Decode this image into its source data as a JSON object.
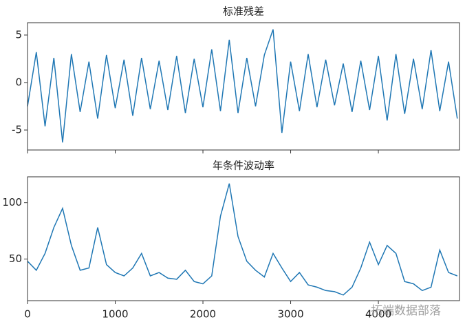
{
  "chart_data": [
    {
      "type": "line",
      "title": "标准残差",
      "color": "#1f77b4",
      "xtick_labels": false,
      "x": [
        0,
        100,
        200,
        300,
        400,
        500,
        600,
        700,
        800,
        900,
        1000,
        1100,
        1200,
        1300,
        1400,
        1500,
        1600,
        1700,
        1800,
        1900,
        2000,
        2100,
        2200,
        2300,
        2400,
        2500,
        2600,
        2700,
        2800,
        2900,
        3000,
        3100,
        3200,
        3300,
        3400,
        3500,
        3600,
        3700,
        3800,
        3900,
        4000,
        4100,
        4200,
        4300,
        4400,
        4500,
        4600,
        4700,
        4800,
        4900
      ],
      "values": [
        -2.5,
        3.2,
        -4.6,
        2.6,
        -6.3,
        3.0,
        -3.1,
        2.2,
        -3.8,
        2.9,
        -2.7,
        2.4,
        -3.5,
        2.6,
        -2.8,
        2.3,
        -2.9,
        2.8,
        -3.2,
        2.5,
        -2.6,
        3.5,
        -3.0,
        4.5,
        -3.2,
        2.6,
        -2.5,
        2.9,
        5.6,
        -5.3,
        2.2,
        -3.0,
        3.0,
        -2.6,
        2.4,
        -2.4,
        2.0,
        -3.1,
        2.3,
        -2.9,
        2.8,
        -4.0,
        3.0,
        -3.3,
        2.5,
        -2.8,
        3.4,
        -3.0,
        2.2,
        -3.8
      ],
      "xlim": [
        0,
        4925
      ],
      "xticks": [
        0,
        1000,
        2000,
        3000,
        4000
      ],
      "ylim": [
        -7.1,
        6.3
      ],
      "yticks": [
        -5,
        0,
        5
      ]
    },
    {
      "type": "line",
      "title": "年条件波动率",
      "color": "#1f77b4",
      "xtick_labels": true,
      "x": [
        0,
        100,
        200,
        300,
        400,
        500,
        600,
        700,
        800,
        900,
        1000,
        1100,
        1200,
        1300,
        1400,
        1500,
        1600,
        1700,
        1800,
        1900,
        2000,
        2100,
        2200,
        2300,
        2400,
        2500,
        2600,
        2700,
        2800,
        2900,
        3000,
        3100,
        3200,
        3300,
        3400,
        3500,
        3600,
        3700,
        3800,
        3900,
        4000,
        4100,
        4200,
        4300,
        4400,
        4500,
        4600,
        4700,
        4800,
        4900
      ],
      "values": [
        48,
        40,
        55,
        78,
        95,
        62,
        40,
        42,
        78,
        45,
        38,
        35,
        42,
        55,
        35,
        38,
        33,
        32,
        40,
        30,
        28,
        35,
        88,
        117,
        70,
        48,
        40,
        34,
        55,
        42,
        30,
        38,
        27,
        25,
        22,
        21,
        18,
        25,
        42,
        65,
        45,
        62,
        55,
        30,
        28,
        22,
        25,
        58,
        38,
        35
      ],
      "xlim": [
        0,
        4925
      ],
      "xticks": [
        0,
        1000,
        2000,
        3000,
        4000
      ],
      "ylim": [
        13,
        123
      ],
      "yticks": [
        50,
        100
      ]
    }
  ],
  "watermark": "拓端数据部落"
}
